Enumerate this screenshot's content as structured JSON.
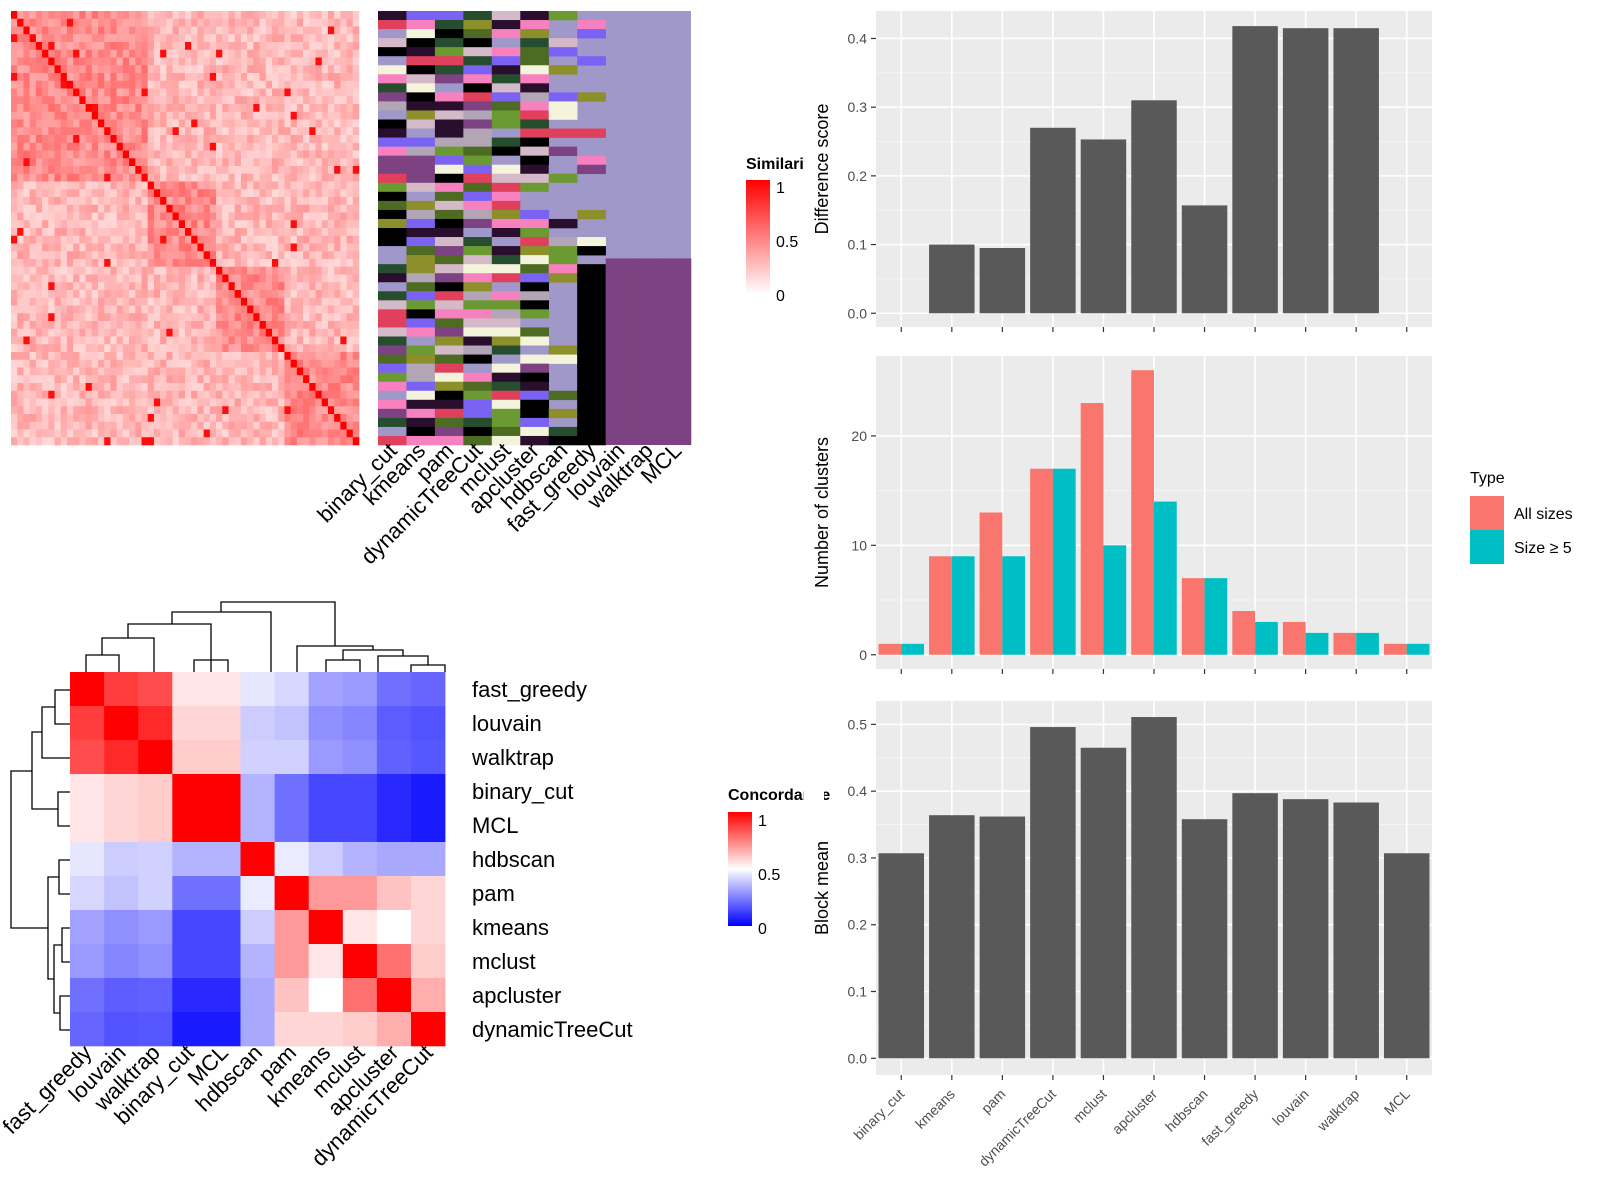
{
  "method_order_rotated": [
    "binary_cut",
    "kmeans",
    "pam",
    "dynamicTreeCut",
    "mclust",
    "apcluster",
    "hdbscan",
    "fast_greedy",
    "louvain",
    "walktrap",
    "MCL"
  ],
  "colors": {
    "bar_dark": "#595959",
    "all_sizes": "#F8766D",
    "size_ge_5": "#00BFC4",
    "panel_bg": "#EBEBEB",
    "grid": "#FFFFFF",
    "heat_red": "#FF0000",
    "heat_white": "#FFFFFF",
    "heat_blue": "#0000FF",
    "partition_bg": "#9F98C9"
  },
  "similarity_heatmap": {
    "legend_title": "Similarity",
    "legend_ticks": [
      "1",
      "0.5",
      "0"
    ],
    "column_labels": [
      "binary_cut",
      "kmeans",
      "pam",
      "dynamicTreeCut",
      "mclust",
      "apcluster",
      "hdbscan",
      "fast_greedy",
      "louvain",
      "walktrap",
      "MCL"
    ]
  },
  "concordance_heatmap": {
    "legend_title": "Concordance",
    "legend_ticks": [
      "1",
      "0.5",
      "0"
    ],
    "row_labels": [
      "fast_greedy",
      "louvain",
      "walktrap",
      "binary_cut",
      "MCL",
      "hdbscan",
      "pam",
      "kmeans",
      "mclust",
      "apcluster",
      "dynamicTreeCut"
    ],
    "col_labels": [
      "fast_greedy",
      "louvain",
      "walktrap",
      "binary_cut",
      "MCL",
      "hdbscan",
      "pam",
      "kmeans",
      "mclust",
      "apcluster",
      "dynamicTreeCut"
    ],
    "matrix": [
      [
        1.0,
        0.88,
        0.85,
        0.55,
        0.55,
        0.45,
        0.42,
        0.32,
        0.3,
        0.22,
        0.2
      ],
      [
        0.88,
        1.0,
        0.92,
        0.58,
        0.58,
        0.4,
        0.38,
        0.28,
        0.26,
        0.18,
        0.16
      ],
      [
        0.85,
        0.92,
        1.0,
        0.6,
        0.6,
        0.41,
        0.41,
        0.3,
        0.28,
        0.19,
        0.17
      ],
      [
        0.55,
        0.58,
        0.6,
        1.0,
        1.0,
        0.35,
        0.22,
        0.14,
        0.14,
        0.08,
        0.05
      ],
      [
        0.55,
        0.58,
        0.6,
        1.0,
        1.0,
        0.35,
        0.22,
        0.14,
        0.14,
        0.08,
        0.05
      ],
      [
        0.45,
        0.4,
        0.41,
        0.35,
        0.35,
        1.0,
        0.46,
        0.4,
        0.35,
        0.33,
        0.33
      ],
      [
        0.42,
        0.38,
        0.41,
        0.22,
        0.22,
        0.46,
        1.0,
        0.7,
        0.7,
        0.62,
        0.58
      ],
      [
        0.32,
        0.28,
        0.3,
        0.14,
        0.14,
        0.4,
        0.7,
        1.0,
        0.55,
        0.5,
        0.58
      ],
      [
        0.3,
        0.26,
        0.28,
        0.14,
        0.14,
        0.35,
        0.7,
        0.55,
        1.0,
        0.78,
        0.6
      ],
      [
        0.22,
        0.18,
        0.19,
        0.08,
        0.08,
        0.33,
        0.62,
        0.5,
        0.78,
        1.0,
        0.66
      ],
      [
        0.2,
        0.16,
        0.17,
        0.05,
        0.05,
        0.33,
        0.58,
        0.58,
        0.6,
        0.66,
        1.0
      ]
    ]
  },
  "chart_data": [
    {
      "type": "bar",
      "categories": [
        "binary_cut",
        "kmeans",
        "pam",
        "dynamicTreeCut",
        "mclust",
        "apcluster",
        "hdbscan",
        "fast_greedy",
        "louvain",
        "walktrap",
        "MCL"
      ],
      "values": [
        0,
        0.1,
        0.095,
        0.27,
        0.253,
        0.31,
        0.157,
        0.418,
        0.415,
        0.415,
        0
      ],
      "title": "",
      "xlabel": "",
      "ylabel": "Difference score",
      "ylim": [
        -0.02,
        0.44
      ],
      "yticks": [
        0.0,
        0.1,
        0.2,
        0.3,
        0.4
      ],
      "ytick_labels": [
        "0.0",
        "0.1",
        "0.2",
        "0.3",
        "0.4"
      ],
      "grid": true
    },
    {
      "type": "bar",
      "categories": [
        "binary_cut",
        "kmeans",
        "pam",
        "dynamicTreeCut",
        "mclust",
        "apcluster",
        "hdbscan",
        "fast_greedy",
        "louvain",
        "walktrap",
        "MCL"
      ],
      "series": [
        {
          "name": "All sizes",
          "values": [
            1,
            9,
            13,
            17,
            23,
            26,
            7,
            4,
            3,
            2,
            1
          ]
        },
        {
          "name": "Size ≥ 5",
          "values": [
            1,
            9,
            9,
            17,
            10,
            14,
            7,
            3,
            2,
            2,
            1
          ]
        }
      ],
      "title": "",
      "xlabel": "",
      "ylabel": "Number of clusters",
      "ylim": [
        -1.3,
        27.3
      ],
      "yticks": [
        0,
        10,
        20
      ],
      "ytick_labels": [
        "0",
        "10",
        "20"
      ],
      "legend_title": "Type",
      "legend_entries": [
        "All sizes",
        "Size ≥ 5"
      ],
      "legend_placement": "right",
      "grid": true
    },
    {
      "type": "bar",
      "categories": [
        "binary_cut",
        "kmeans",
        "pam",
        "dynamicTreeCut",
        "mclust",
        "apcluster",
        "hdbscan",
        "fast_greedy",
        "louvain",
        "walktrap",
        "MCL"
      ],
      "values": [
        0.307,
        0.364,
        0.362,
        0.496,
        0.465,
        0.511,
        0.358,
        0.397,
        0.388,
        0.383,
        0.307
      ],
      "title": "",
      "xlabel": "",
      "ylabel": "Block mean",
      "ylim": [
        -0.025,
        0.535
      ],
      "yticks": [
        0.0,
        0.1,
        0.2,
        0.3,
        0.4,
        0.5
      ],
      "ytick_labels": [
        "0.0",
        "0.1",
        "0.2",
        "0.3",
        "0.4",
        "0.5"
      ],
      "xtick_labels": [
        "binary_cut",
        "kmeans",
        "pam",
        "dynamicTreeCut",
        "mclust",
        "apcluster",
        "hdbscan",
        "fast_greedy",
        "louvain",
        "walktrap",
        "MCL"
      ],
      "grid": true
    }
  ]
}
